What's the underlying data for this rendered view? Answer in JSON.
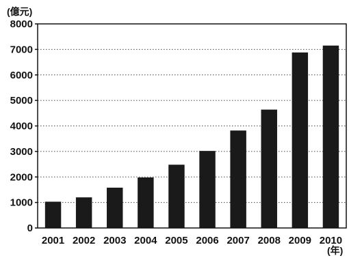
{
  "chart_data": {
    "type": "bar",
    "y_unit_label": "(億元)",
    "x_unit_label": "(年)",
    "categories": [
      "2001",
      "2002",
      "2003",
      "2004",
      "2005",
      "2006",
      "2007",
      "2008",
      "2009",
      "2010"
    ],
    "values": [
      1030,
      1200,
      1580,
      1980,
      2480,
      3020,
      3820,
      4640,
      6880,
      7150
    ],
    "ylim": [
      0,
      8000
    ],
    "yticks": [
      0,
      1000,
      2000,
      3000,
      4000,
      5000,
      6000,
      7000,
      8000
    ],
    "grid": "dotted horizontal",
    "bar_color": "#1a1a1a"
  }
}
